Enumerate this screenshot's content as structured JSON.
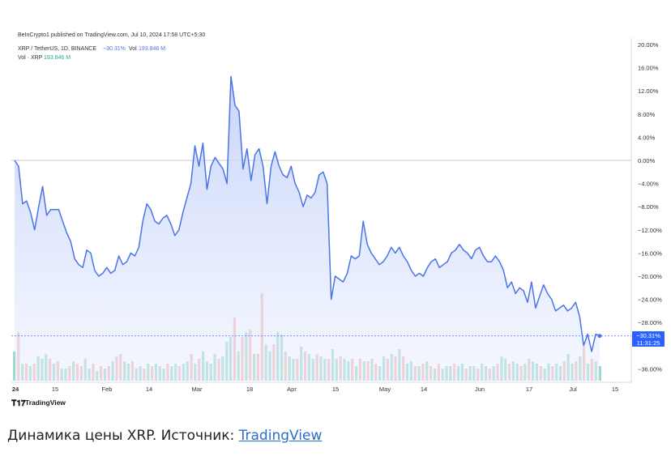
{
  "published": "BeInCrypto1 published on TradingView.com, Jul 10, 2024 17:58 UTC+5:30",
  "legend": {
    "symbol": "XRP / TetherUS, 1D, BINANCE",
    "change": "−30.31%",
    "vol_label": "Vol",
    "vol_value": "193.846 M",
    "vol_series_label": "Vol · XRP",
    "vol_series_value": "193.846 M"
  },
  "last_label": {
    "value": "−30.31%",
    "countdown": "11:31:25"
  },
  "brand": "TradingView",
  "caption": {
    "text": "Динамика цены XRP. Источник: ",
    "link": "TradingView"
  },
  "colors": {
    "line": "#4a74e8",
    "area_top": "#c7d4fb",
    "vol_up": "#7fcdbb",
    "vol_down": "#f2a09c",
    "last_badge": "#2962ff"
  },
  "chart_data": [
    {
      "type": "area",
      "title": "",
      "xlabel": "",
      "ylabel": "",
      "y_unit": "%",
      "ylim": [
        -38,
        21
      ],
      "y_ticks": [
        "20.00%",
        "16.00%",
        "12.00%",
        "8.00%",
        "4.00%",
        "0.00%",
        "−4.00%",
        "−8.00%",
        "−12.00%",
        "−16.00%",
        "−20.00%",
        "−24.00%",
        "−28.00%",
        "−36.00%"
      ],
      "x_ticks": [
        "24",
        "15",
        "Feb",
        "14",
        "Mar",
        "18",
        "Apr",
        "15",
        "May",
        "14",
        "Jun",
        "17",
        "Jul",
        "15"
      ],
      "series": [
        {
          "values": [
            0,
            -1,
            -7.5,
            -7,
            -9,
            -12,
            -8,
            -4.5,
            -9.5,
            -8.5,
            -8.5,
            -8.5,
            -10.5,
            -12.5,
            -14,
            -17,
            -18,
            -18.5,
            -15.5,
            -16,
            -19,
            -20,
            -19.5,
            -18.5,
            -19.5,
            -19,
            -16.5,
            -18,
            -17.5,
            -16,
            -16.5,
            -15,
            -10.5,
            -7.5,
            -8.5,
            -10.5,
            -11,
            -10,
            -9.5,
            -11,
            -13,
            -12,
            -9,
            -6.5,
            -4,
            2.5,
            -1,
            3,
            -5,
            -1,
            0.5,
            -0.5,
            -1.5,
            -4,
            14.5,
            9.5,
            8.5,
            -1.5,
            2,
            -3.5,
            1,
            2,
            -1,
            -7.5,
            -1,
            1.5,
            -1,
            -2.5,
            -3,
            -1,
            -4,
            -5.5,
            -8,
            -6,
            -6.5,
            -5.5,
            -2.5,
            -2,
            -4,
            -24,
            -20,
            -20.5,
            -21,
            -19.5,
            -16.5,
            -17,
            -16.5,
            -10.5,
            -14.5,
            -16,
            -17,
            -18,
            -17.5,
            -16.5,
            -15,
            -16,
            -15,
            -16.5,
            -17.5,
            -19,
            -20,
            -19.5,
            -20,
            -18.5,
            -17.5,
            -17,
            -18.5,
            -18,
            -17.5,
            -16,
            -15.5,
            -14.5,
            -15.5,
            -16,
            -17,
            -15.5,
            -15,
            -16.5,
            -17.5,
            -17.5,
            -16.5,
            -17.5,
            -19,
            -22,
            -21,
            -23,
            -22,
            -22.5,
            -24.5,
            -21,
            -25.5,
            -23.5,
            -21.5,
            -23,
            -24,
            -26,
            -25.5,
            -25,
            -26,
            -25.5,
            -24.5,
            -27,
            -32,
            -30,
            -33,
            -30,
            -30.31
          ]
        }
      ]
    },
    {
      "type": "bar",
      "title": "Vol · XRP",
      "values_relative": [
        0.6,
        1.0,
        0.35,
        0.35,
        0.3,
        0.35,
        0.5,
        0.45,
        0.55,
        0.45,
        0.35,
        0.4,
        0.25,
        0.25,
        0.3,
        0.4,
        0.35,
        0.3,
        0.45,
        0.25,
        0.35,
        0.2,
        0.3,
        0.25,
        0.3,
        0.4,
        0.5,
        0.55,
        0.4,
        0.35,
        0.4,
        0.25,
        0.3,
        0.25,
        0.35,
        0.3,
        0.35,
        0.3,
        0.25,
        0.35,
        0.3,
        0.35,
        0.3,
        0.35,
        0.4,
        0.55,
        0.35,
        0.45,
        0.6,
        0.4,
        0.35,
        0.55,
        0.45,
        0.5,
        0.8,
        0.9,
        1.3,
        0.6,
        0.9,
        1.0,
        1.05,
        0.55,
        0.55,
        1.8,
        0.75,
        0.6,
        0.75,
        1.0,
        0.95,
        0.6,
        0.5,
        0.45,
        0.45,
        0.7,
        0.6,
        0.55,
        0.45,
        0.55,
        0.5,
        0.45,
        0.45,
        0.65,
        0.45,
        0.5,
        0.45,
        0.4,
        0.45,
        0.3,
        0.45,
        0.4,
        0.4,
        0.45,
        0.35,
        0.3,
        0.5,
        0.45,
        0.55,
        0.5,
        0.65,
        0.5,
        0.35,
        0.4,
        0.3,
        0.3,
        0.35,
        0.4,
        0.3,
        0.25,
        0.35,
        0.25,
        0.3,
        0.3,
        0.35,
        0.3,
        0.35,
        0.25,
        0.3,
        0.3,
        0.25,
        0.35,
        0.3,
        0.25,
        0.3,
        0.35,
        0.5,
        0.45,
        0.35,
        0.4,
        0.35,
        0.3,
        0.35,
        0.45,
        0.4,
        0.35,
        0.3,
        0.25,
        0.35,
        0.3,
        0.35,
        0.3,
        0.4,
        0.55,
        0.35,
        0.4,
        0.5,
        0.7,
        0.35,
        0.45,
        0.4,
        0.3
      ],
      "down_indices": [
        1,
        3,
        5,
        9,
        11,
        14,
        16,
        17,
        20,
        22,
        24,
        26,
        27,
        30,
        33,
        35,
        39,
        42,
        45,
        47,
        52,
        56,
        58,
        60,
        62,
        63,
        66,
        69,
        72,
        74,
        77,
        80,
        83,
        86,
        88,
        90,
        92,
        95,
        97,
        99,
        102,
        104,
        106,
        108,
        112,
        115,
        118,
        121,
        123,
        126,
        129,
        131,
        134,
        137,
        140,
        143,
        145,
        147
      ]
    }
  ]
}
